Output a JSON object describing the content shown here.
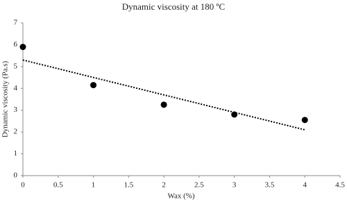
{
  "chart_data": {
    "type": "scatter",
    "title": "Dynamic viscosity at 180 ºC",
    "x_label": "Wax (%)",
    "y_label": "Dynamic viscosity (Pa.s)",
    "x": [
      0,
      1,
      2,
      3,
      4
    ],
    "values": [
      5.9,
      4.15,
      3.25,
      2.8,
      2.55
    ],
    "color": "#000000",
    "trendline": {
      "x": [
        0,
        4
      ],
      "values": [
        5.3,
        2.1
      ],
      "color": "#000000"
    },
    "xlim": [
      0,
      4.5
    ],
    "xticks": [
      0,
      0.5,
      1,
      1.5,
      2,
      2.5,
      3,
      3.5,
      4,
      4.5
    ],
    "ylim": [
      0,
      7
    ],
    "yticks": [
      0,
      1,
      2,
      3,
      4,
      5,
      6,
      7
    ],
    "grid": false
  }
}
